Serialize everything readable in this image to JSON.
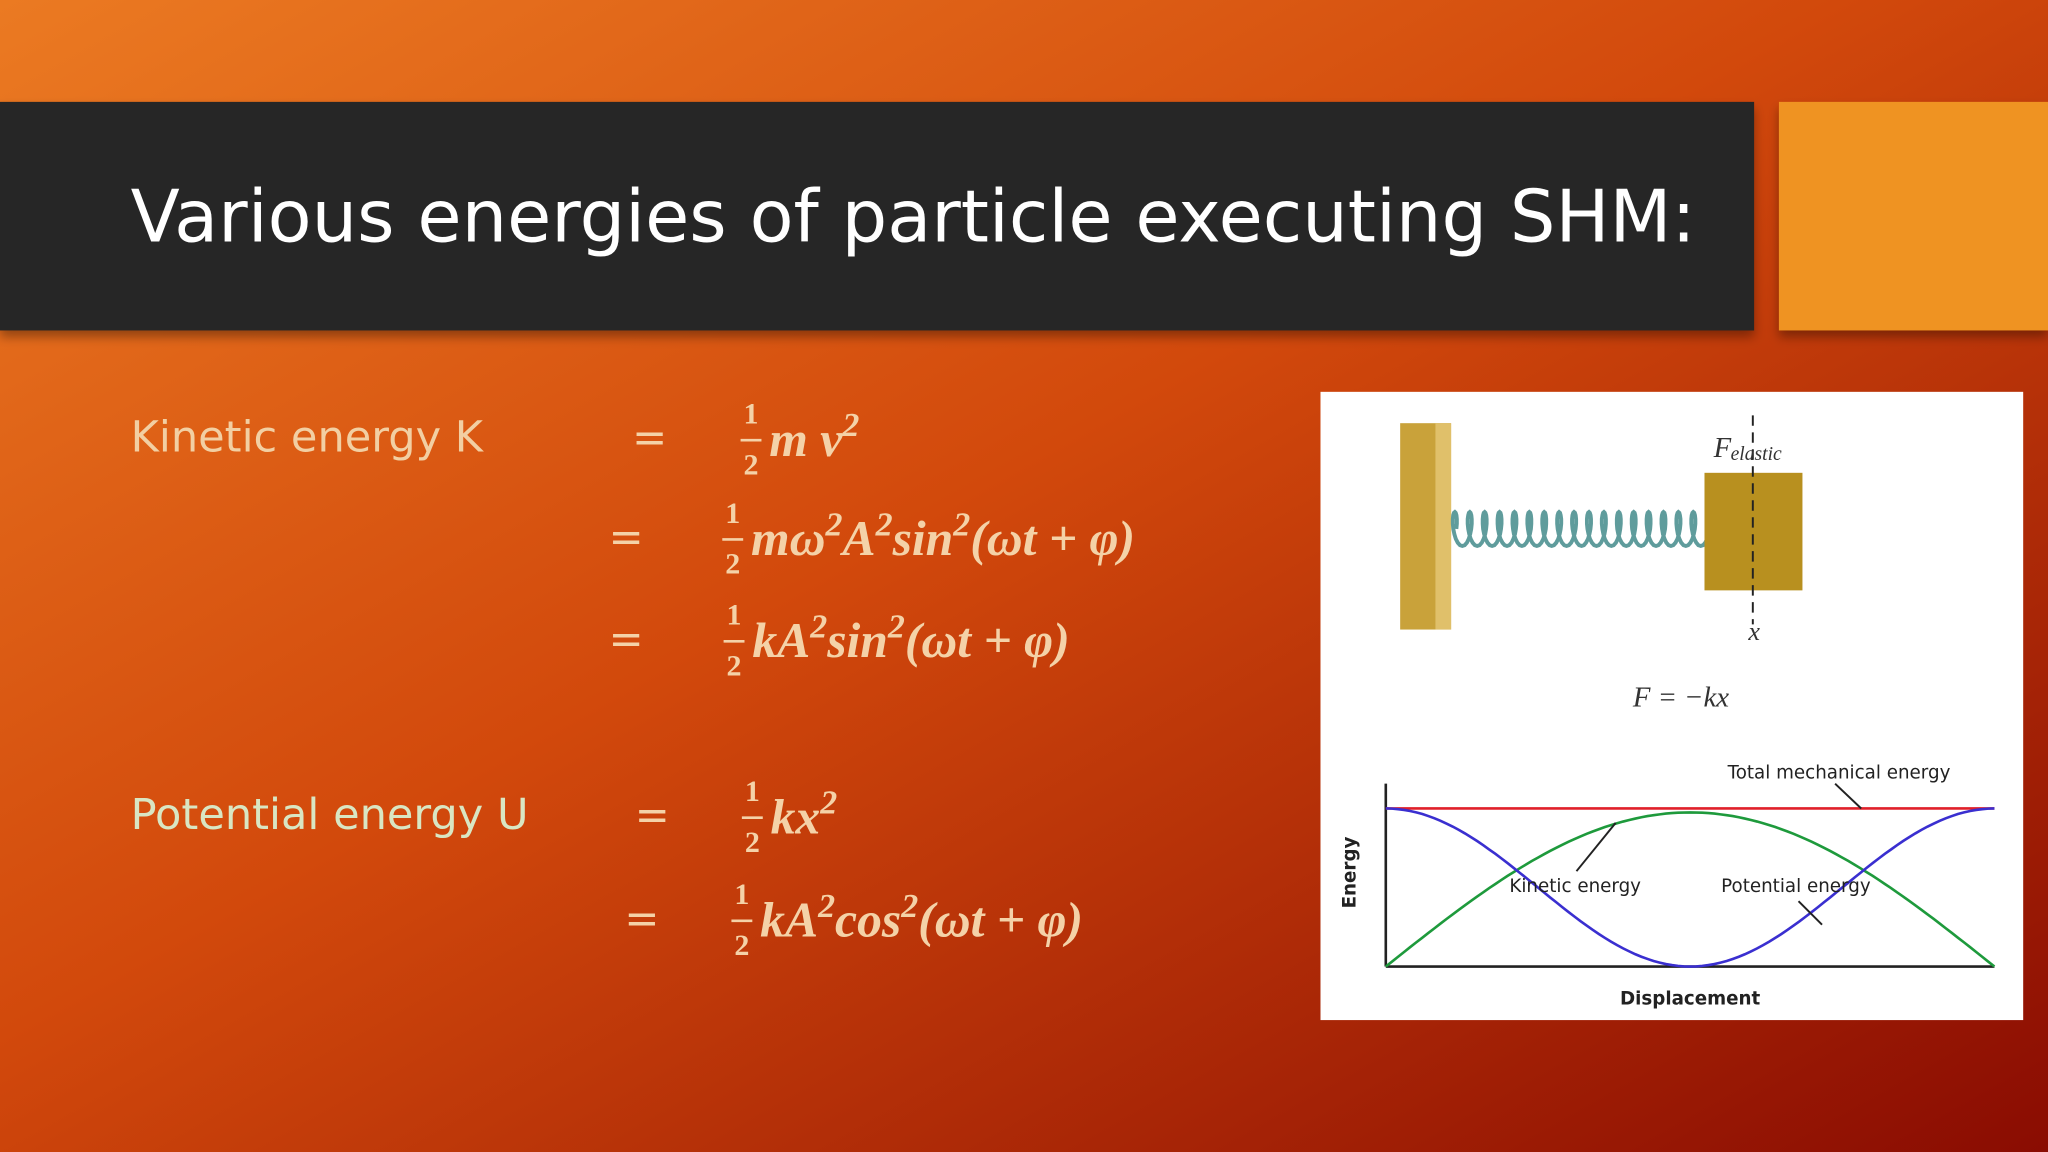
{
  "title": "Various energies of particle executing SHM:",
  "kinetic": {
    "label": "Kinetic energy  K",
    "rows": [
      {
        "eq": "=",
        "frac": [
          "1",
          "2"
        ],
        "expr": [
          {
            "text": "m v"
          },
          {
            "sup": "2"
          }
        ]
      },
      {
        "eq": "=",
        "frac": [
          "1",
          "2"
        ],
        "expr": [
          {
            "text": "mω"
          },
          {
            "sup": "2"
          },
          {
            "text": "A"
          },
          {
            "sup": "2"
          },
          {
            "text": "sin"
          },
          {
            "sup": "2"
          },
          {
            "text": "(ωt + φ)"
          }
        ]
      },
      {
        "eq": "=",
        "frac": [
          "1",
          "2"
        ],
        "expr": [
          {
            "text": "kA"
          },
          {
            "sup": "2"
          },
          {
            "text": "sin"
          },
          {
            "sup": "2"
          },
          {
            "text": "(ωt + φ)"
          }
        ]
      }
    ]
  },
  "potential": {
    "label": "Potential energy U",
    "rows": [
      {
        "eq": "=",
        "frac": [
          "1",
          "2"
        ],
        "expr": [
          {
            "text": "kx"
          },
          {
            "sup": "2"
          }
        ]
      },
      {
        "eq": "=",
        "frac": [
          "1",
          "2"
        ],
        "expr": [
          {
            "text": "kA"
          },
          {
            "sup": "2"
          },
          {
            "text": "cos"
          },
          {
            "sup": "2"
          },
          {
            "text": "(ωt + φ)"
          }
        ]
      }
    ]
  },
  "figure": {
    "force_label": "F",
    "force_subscript": "elastic",
    "x_label": "x",
    "law": "F = −kx",
    "total_label": "Total mechanical energy",
    "kinetic_label": "Kinetic energy",
    "potential_label": "Potential energy",
    "y_axis": "Energy",
    "x_axis": "Displacement"
  }
}
